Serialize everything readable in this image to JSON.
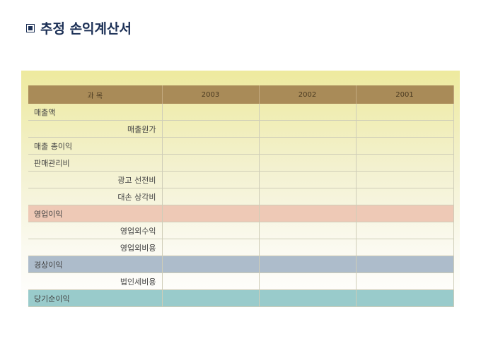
{
  "title": "추정 손익계산서",
  "colors": {
    "header": "#a98b58",
    "operating_income": "#eec9b6",
    "ordinary_income": "#adbccb",
    "net_income": "#99cbcb",
    "title": "#1b2f55"
  },
  "table": {
    "headers": [
      "과 목",
      "2003",
      "2002",
      "2001"
    ],
    "rows": [
      {
        "label": "매출액",
        "indent": false,
        "values": [
          "",
          "",
          ""
        ]
      },
      {
        "label": "매출원가",
        "indent": true,
        "values": [
          "",
          "",
          ""
        ]
      },
      {
        "label": "매출 총이익",
        "indent": false,
        "values": [
          "",
          "",
          ""
        ]
      },
      {
        "label": "판매관리비",
        "indent": false,
        "values": [
          "",
          "",
          ""
        ]
      },
      {
        "label": "광고 선전비",
        "indent": true,
        "values": [
          "",
          "",
          ""
        ]
      },
      {
        "label": "대손 상각비",
        "indent": true,
        "values": [
          "",
          "",
          ""
        ]
      },
      {
        "label": "영업이익",
        "indent": false,
        "highlight": "op",
        "values": [
          "",
          "",
          ""
        ]
      },
      {
        "label": "영업외수익",
        "indent": true,
        "values": [
          "",
          "",
          ""
        ]
      },
      {
        "label": "영업외비용",
        "indent": true,
        "values": [
          "",
          "",
          ""
        ]
      },
      {
        "label": "경상이익",
        "indent": false,
        "highlight": "ord",
        "values": [
          "",
          "",
          ""
        ]
      },
      {
        "label": "법인세비용",
        "indent": true,
        "values": [
          "",
          "",
          ""
        ]
      },
      {
        "label": "당기순이익",
        "indent": false,
        "highlight": "net",
        "values": [
          "",
          "",
          ""
        ]
      }
    ]
  }
}
